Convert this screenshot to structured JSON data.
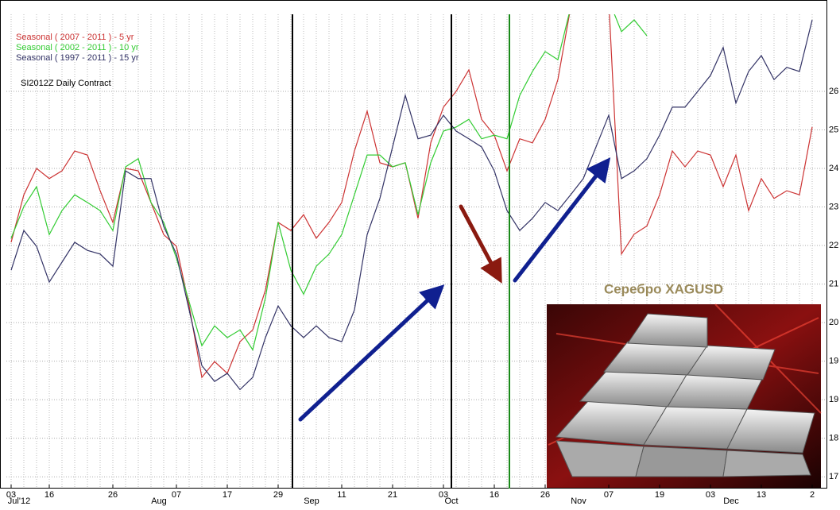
{
  "chart_data": {
    "type": "line",
    "subtitle": "SI2012Z Daily Contract",
    "annotation": "Серебро  XAGUSD",
    "categories": [
      "03",
      null,
      null,
      "16",
      null,
      null,
      null,
      null,
      "26",
      null,
      null,
      null,
      null,
      "07",
      null,
      null,
      null,
      "17",
      null,
      null,
      null,
      "29",
      null,
      null,
      null,
      null,
      "11",
      null,
      null,
      null,
      "21",
      null,
      null,
      null,
      "03",
      null,
      null,
      null,
      "16",
      null,
      null,
      null,
      "26",
      null,
      null,
      null,
      null,
      "07",
      null,
      null,
      null,
      "19",
      null,
      null,
      null,
      "03",
      null,
      null,
      null,
      "13",
      null,
      null,
      null,
      "2"
    ],
    "months": [
      "Jul'12",
      null,
      null,
      null,
      null,
      null,
      null,
      null,
      null,
      null,
      null,
      "Aug",
      null,
      null,
      null,
      null,
      null,
      null,
      null,
      null,
      null,
      null,
      null,
      "Sep",
      null,
      null,
      null,
      null,
      null,
      null,
      null,
      null,
      null,
      null,
      "Oct",
      null,
      null,
      null,
      null,
      null,
      null,
      null,
      null,
      null,
      "Nov",
      null,
      null,
      null,
      null,
      null,
      null,
      null,
      null,
      null,
      null,
      null,
      "Dec",
      null,
      null,
      null,
      null,
      null,
      null,
      null
    ],
    "series": [
      {
        "name": "Seasonal ( 2007 - 2011 ) - 5 yr",
        "color": "#cc3333",
        "values": [
          22.4,
          23.57,
          24.22,
          23.97,
          24.16,
          24.65,
          24.55,
          23.67,
          22.89,
          24.22,
          24.16,
          23.38,
          22.59,
          22.3,
          20.83,
          19.07,
          19.46,
          19.17,
          19.95,
          20.24,
          21.22,
          22.89,
          22.69,
          23.08,
          22.5,
          22.89,
          23.38,
          24.65,
          25.63,
          24.36,
          24.26,
          24.36,
          22.99,
          24.85,
          25.73,
          26.12,
          26.65,
          25.43,
          25.04,
          24.16,
          24.95,
          24.85,
          25.43,
          26.41,
          28.18,
          null,
          null,
          28.37,
          22.11,
          22.6,
          22.8,
          23.57,
          24.65,
          24.26,
          24.65,
          24.55,
          23.77,
          24.55,
          23.18,
          23.97,
          23.48,
          23.67,
          23.57,
          25.24
        ]
      },
      {
        "name": "Seasonal ( 2002 - 2011 ) - 10 yr",
        "color": "#33cc33",
        "values": [
          22.5,
          23.28,
          23.77,
          22.59,
          23.18,
          23.57,
          23.38,
          23.18,
          22.69,
          24.26,
          24.46,
          23.38,
          22.89,
          22.01,
          20.93,
          19.85,
          20.34,
          20.05,
          20.24,
          19.75,
          21.03,
          22.89,
          21.71,
          21.12,
          21.81,
          22.11,
          22.59,
          23.57,
          24.55,
          24.55,
          24.26,
          24.36,
          23.08,
          24.36,
          25.14,
          25.24,
          25.43,
          24.95,
          25.04,
          24.95,
          26.02,
          26.61,
          27.1,
          26.9,
          28.18,
          null,
          null,
          28.37,
          27.59,
          27.88,
          27.49,
          null,
          null,
          null,
          null,
          null,
          null,
          null,
          null,
          null,
          null,
          null,
          null,
          null
        ]
      },
      {
        "name": "Seasonal ( 1997 - 2011 ) - 15 yr",
        "color": "#333366",
        "values": [
          21.71,
          22.69,
          22.3,
          21.42,
          21.91,
          22.4,
          22.2,
          22.11,
          21.81,
          24.16,
          23.97,
          23.97,
          22.79,
          22.11,
          20.73,
          19.36,
          18.97,
          19.17,
          18.77,
          19.07,
          20.05,
          20.83,
          20.34,
          20.05,
          20.34,
          20.05,
          19.95,
          20.73,
          22.59,
          23.48,
          24.75,
          26.02,
          24.95,
          25.04,
          25.53,
          25.14,
          24.95,
          24.75,
          24.16,
          23.18,
          22.69,
          22.99,
          23.38,
          23.18,
          23.57,
          23.97,
          24.75,
          25.53,
          23.97,
          24.16,
          24.46,
          25.04,
          25.73,
          25.73,
          26.12,
          26.51,
          27.2,
          25.83,
          26.61,
          27.0,
          26.41,
          26.71,
          26.61,
          27.88
        ]
      }
    ],
    "ylim": [
      16.33,
      27.94
    ],
    "yticks": [
      {
        "value": 16.62,
        "label": "17"
      },
      {
        "value": 17.57,
        "label": "18"
      },
      {
        "value": 18.52,
        "label": "19"
      },
      {
        "value": 19.47,
        "label": "19"
      },
      {
        "value": 20.42,
        "label": "20"
      },
      {
        "value": 21.37,
        "label": "21"
      },
      {
        "value": 22.32,
        "label": "22"
      },
      {
        "value": 23.27,
        "label": "23"
      },
      {
        "value": 24.22,
        "label": "24"
      },
      {
        "value": 25.17,
        "label": "25"
      },
      {
        "value": 26.12,
        "label": "26"
      }
    ],
    "grid": true
  }
}
